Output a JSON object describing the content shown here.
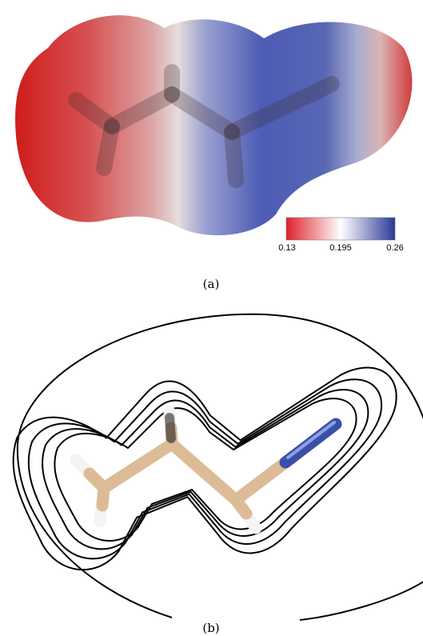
{
  "panels": [
    {
      "label": "(a)",
      "colorbar": {
        "ticks": [
          0.13,
          0.195,
          0.26
        ]
      }
    },
    {
      "label": "(b)"
    }
  ]
}
